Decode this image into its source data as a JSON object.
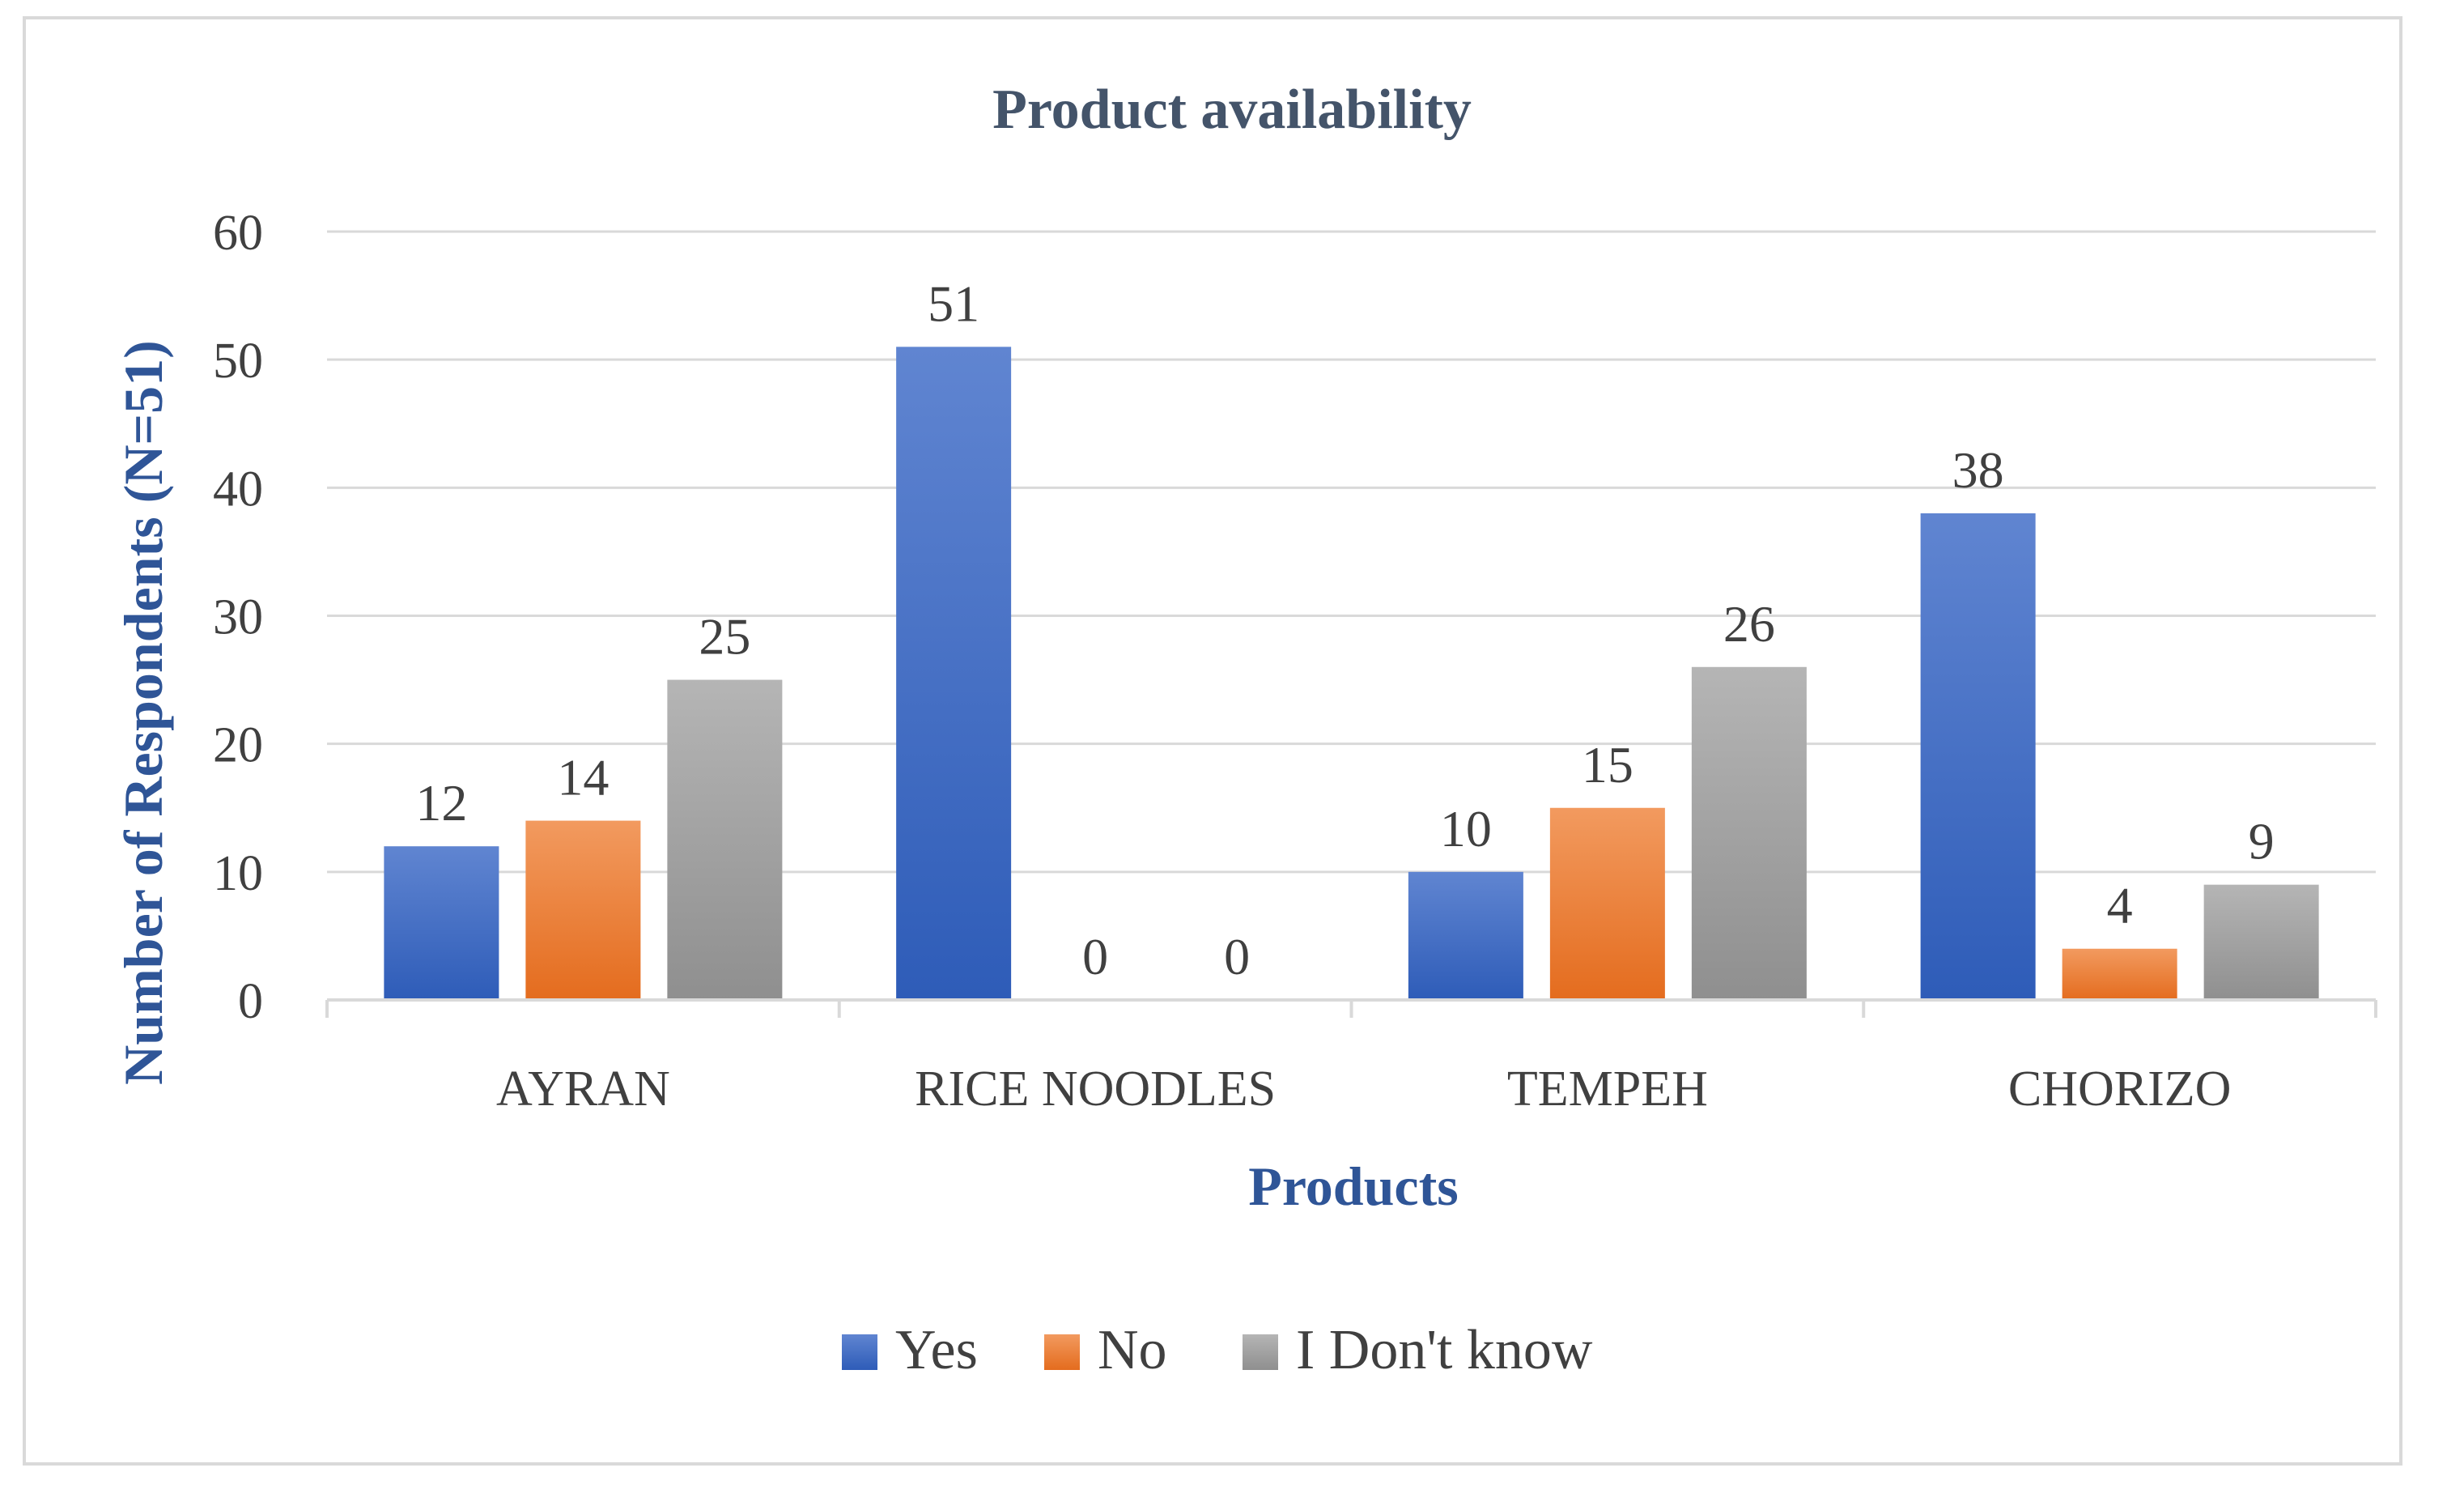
{
  "chart_data": {
    "type": "bar",
    "title": "Product availability",
    "xlabel": "Products",
    "ylabel": "Number of Respondents (N=51)",
    "ylim": [
      0,
      60
    ],
    "yticks": [
      0,
      10,
      20,
      30,
      40,
      50,
      60
    ],
    "grid": true,
    "legend_position": "bottom",
    "categories": [
      "AYRAN",
      "RICE NOODLES",
      "TEMPEH",
      "CHORIZO"
    ],
    "series": [
      {
        "name": "Yes",
        "color": "#4472c4",
        "color_light": "#6085d1",
        "color_dark": "#2e5cb8",
        "values": [
          12,
          51,
          10,
          38
        ]
      },
      {
        "name": "No",
        "color": "#ed7d31",
        "color_light": "#f29a5f",
        "color_dark": "#e46c1e",
        "values": [
          14,
          0,
          15,
          4
        ]
      },
      {
        "name": "I Don't know",
        "color": "#a5a5a5",
        "color_light": "#b5b5b5",
        "color_dark": "#8f8f8f",
        "values": [
          25,
          0,
          26,
          9
        ]
      }
    ]
  }
}
